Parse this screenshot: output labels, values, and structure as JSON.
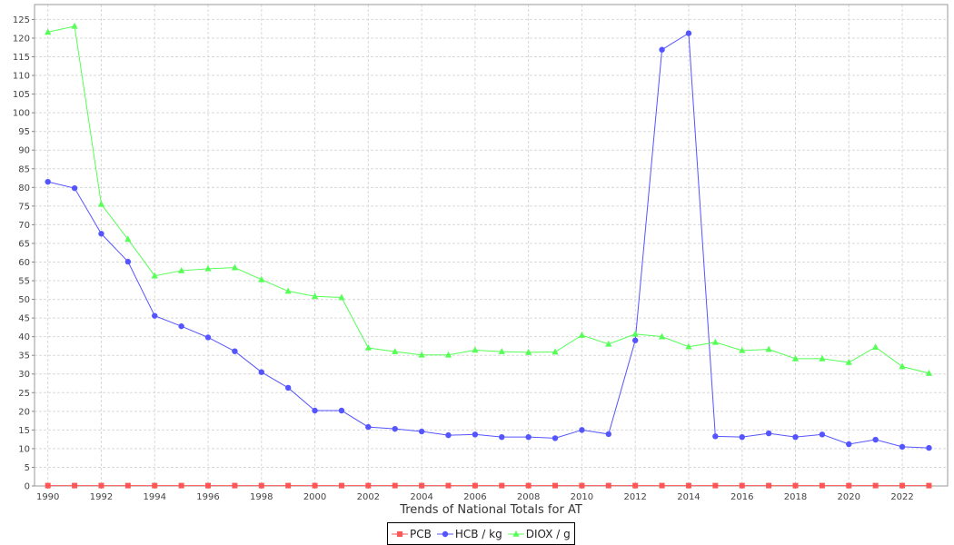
{
  "chart_data": {
    "type": "line",
    "title": "",
    "xlabel": "Trends of National Totals for AT",
    "ylabel": "",
    "x": [
      1990,
      1991,
      1992,
      1993,
      1994,
      1995,
      1996,
      1997,
      1998,
      1999,
      2000,
      2001,
      2002,
      2003,
      2004,
      2005,
      2006,
      2007,
      2008,
      2009,
      2010,
      2011,
      2012,
      2013,
      2014,
      2015,
      2016,
      2017,
      2018,
      2019,
      2020,
      2021,
      2022,
      2023
    ],
    "x_tick_labels": [
      "1990",
      "1992",
      "1994",
      "1996",
      "1998",
      "2000",
      "2002",
      "2004",
      "2006",
      "2008",
      "2010",
      "2012",
      "2014",
      "2016",
      "2018",
      "2020",
      "2022"
    ],
    "ylim": [
      0,
      129
    ],
    "y_ticks": [
      0,
      5,
      10,
      15,
      20,
      25,
      30,
      35,
      40,
      45,
      50,
      55,
      60,
      65,
      70,
      75,
      80,
      85,
      90,
      95,
      100,
      105,
      110,
      115,
      120,
      125
    ],
    "grid": true,
    "legend_position": "bottom-center",
    "series": [
      {
        "name": "PCB",
        "color": "#ff5555",
        "marker": "square",
        "values": [
          0.1,
          0.1,
          0.1,
          0.1,
          0.1,
          0.1,
          0.1,
          0.1,
          0.1,
          0.1,
          0.1,
          0.1,
          0.1,
          0.1,
          0.1,
          0.1,
          0.1,
          0.1,
          0.1,
          0.1,
          0.1,
          0.1,
          0.1,
          0.1,
          0.1,
          0.1,
          0.1,
          0.1,
          0.1,
          0.1,
          0.1,
          0.1,
          0.1,
          0.1
        ]
      },
      {
        "name": "HCB / kg",
        "color": "#5555ff",
        "marker": "circle",
        "values": [
          81.5,
          79.8,
          67.6,
          60.1,
          45.6,
          42.8,
          39.8,
          36.1,
          30.5,
          26.3,
          20.2,
          20.2,
          15.8,
          15.3,
          14.6,
          13.6,
          13.8,
          13.1,
          13.1,
          12.8,
          15.0,
          13.9,
          39.0,
          116.9,
          121.3,
          13.3,
          13.1,
          14.1,
          13.1,
          13.8,
          11.2,
          12.4,
          10.5,
          10.2
        ]
      },
      {
        "name": "DIOX / g",
        "color": "#55ff55",
        "marker": "triangle",
        "values": [
          121.6,
          123.2,
          75.5,
          66.1,
          56.3,
          57.7,
          58.2,
          58.5,
          55.3,
          52.2,
          50.8,
          50.5,
          37.0,
          36.0,
          35.1,
          35.1,
          36.4,
          36.0,
          35.8,
          35.9,
          40.4,
          38.0,
          40.7,
          40.0,
          37.3,
          38.5,
          36.3,
          36.6,
          34.1,
          34.1,
          33.1,
          37.2,
          32.0,
          30.2
        ]
      }
    ]
  }
}
